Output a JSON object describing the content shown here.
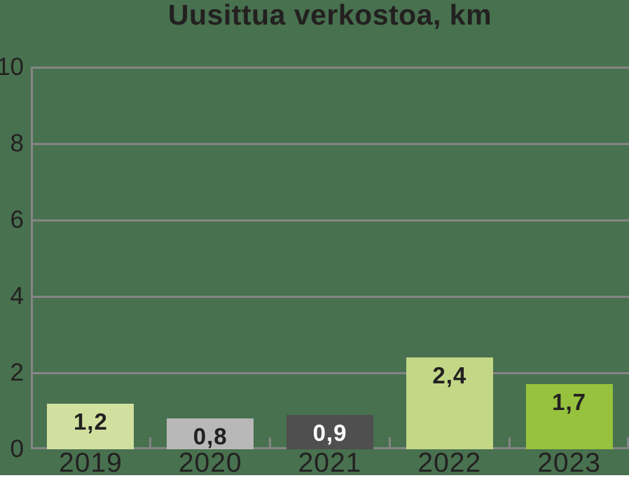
{
  "colors": {
    "background": "#48714f",
    "axis": "#858585",
    "text": "#232020"
  },
  "chart_data": {
    "type": "bar",
    "title": "Uusittua verkostoa, km",
    "categories": [
      "2019",
      "2020",
      "2021",
      "2022",
      "2023"
    ],
    "values": [
      1.2,
      0.8,
      0.9,
      2.4,
      1.7
    ],
    "value_labels": [
      "1,2",
      "0,8",
      "0,9",
      "2,4",
      "1,7"
    ],
    "bar_colors": [
      "#d2e09f",
      "#b9b8b8",
      "#4f4f4f",
      "#c3d887",
      "#96c23d"
    ],
    "value_label_colors": [
      "#232020",
      "#232020",
      "#ffffff",
      "#232020",
      "#232020"
    ],
    "xlabel": "",
    "ylabel": "",
    "ylim": [
      0,
      10
    ],
    "yticks": [
      0,
      2,
      4,
      6,
      8,
      10
    ],
    "ytick_labels": [
      "0",
      "2",
      "4",
      "6",
      "8",
      "10"
    ],
    "grid": "horizontal",
    "legend_position": "none",
    "value_label_position": "inside-top"
  }
}
